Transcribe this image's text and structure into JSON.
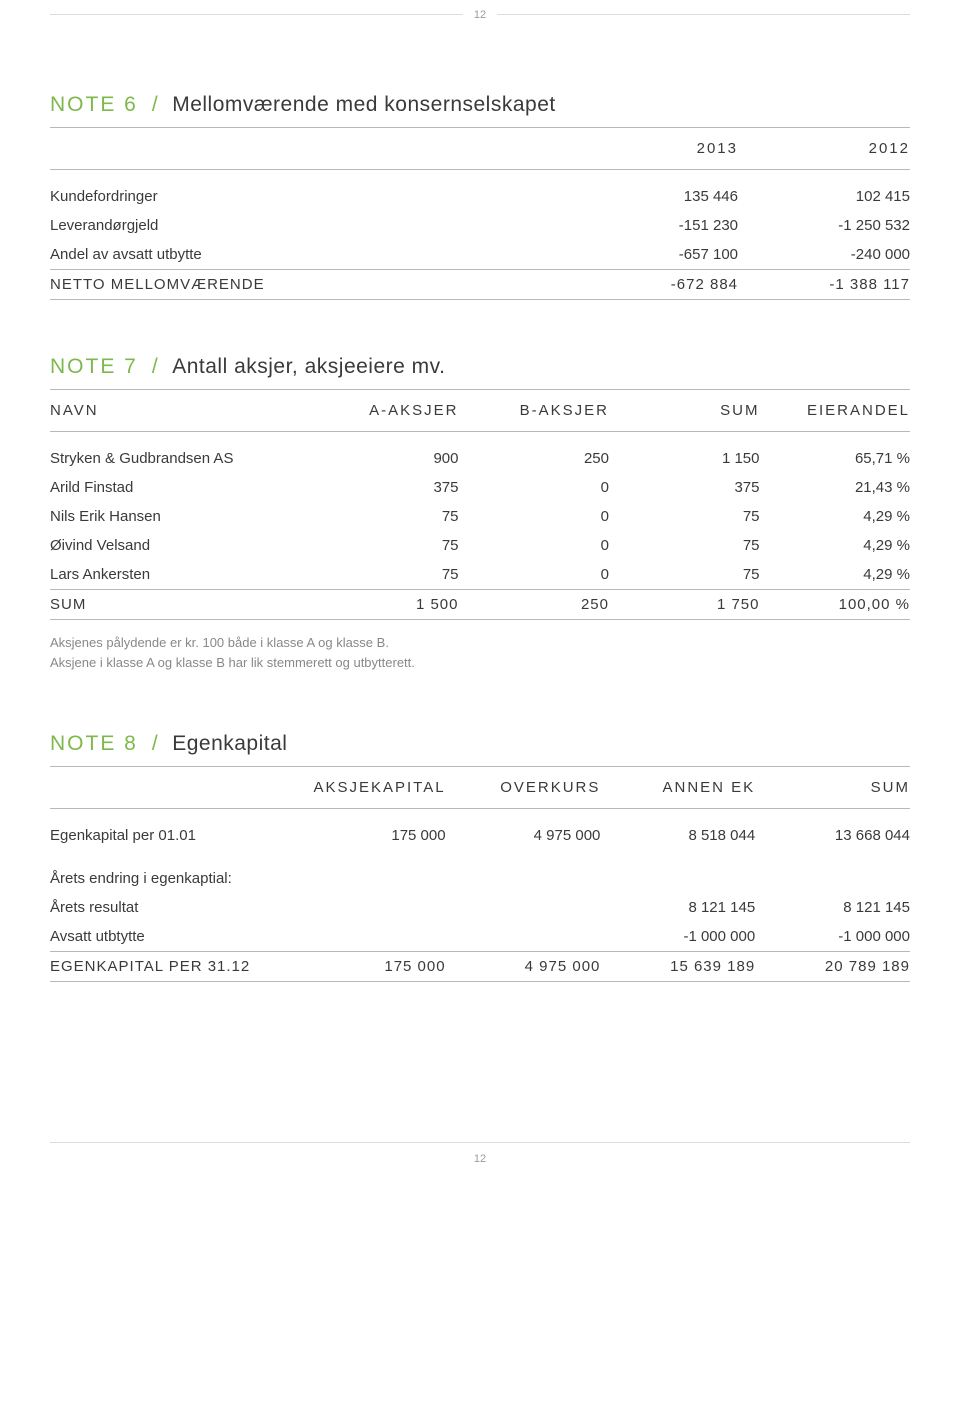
{
  "page_number_top": "12",
  "page_number_bottom": "12",
  "colors": {
    "accent": "#7db84c",
    "rule": "#b8b8b8",
    "light_rule": "#dcdcdc",
    "text": "#3a3a3a",
    "muted": "#888888"
  },
  "note6": {
    "num": "NOTE 6",
    "slash": "/",
    "title": "Mellomværende med konsernselskapet",
    "col_years": [
      "2013",
      "2012"
    ],
    "rows": [
      {
        "label": "Kundefordringer",
        "v1": "135 446",
        "v2": "102 415"
      },
      {
        "label": "Leverandørgjeld",
        "v1": "-151 230",
        "v2": "-1 250 532"
      },
      {
        "label": "Andel av avsatt utbytte",
        "v1": "-657 100",
        "v2": "-240 000"
      }
    ],
    "total": {
      "label": "NETTO MELLOMVÆRENDE",
      "v1": "-672 884",
      "v2": "-1 388 117"
    }
  },
  "note7": {
    "num": "NOTE 7",
    "slash": "/",
    "title": "Antall aksjer, aksjeeiere mv.",
    "headers": [
      "NAVN",
      "A-AKSJER",
      "B-AKSJER",
      "SUM",
      "EIERANDEL"
    ],
    "rows": [
      {
        "c": [
          "Stryken & Gudbrandsen AS",
          "900",
          "250",
          "1 150",
          "65,71 %"
        ]
      },
      {
        "c": [
          "Arild Finstad",
          "375",
          "0",
          "375",
          "21,43 %"
        ]
      },
      {
        "c": [
          "Nils Erik Hansen",
          "75",
          "0",
          "75",
          "4,29 %"
        ]
      },
      {
        "c": [
          "Øivind Velsand",
          "75",
          "0",
          "75",
          "4,29 %"
        ]
      },
      {
        "c": [
          "Lars Ankersten",
          "75",
          "0",
          "75",
          "4,29 %"
        ]
      }
    ],
    "total": {
      "c": [
        "SUM",
        "1 500",
        "250",
        "1 750",
        "100,00 %"
      ]
    },
    "footnote1": "Aksjenes pålydende er kr. 100 både i klasse A og klasse B.",
    "footnote2": "Aksjene i klasse A og klasse B har lik stemmerett og utbytterett."
  },
  "note8": {
    "num": "NOTE 8",
    "slash": "/",
    "title": "Egenkapital",
    "headers": [
      "",
      "AKSJEKAPITAL",
      "OVERKURS",
      "ANNEN EK",
      "SUM"
    ],
    "opening": {
      "c": [
        "Egenkapital per 01.01",
        "175 000",
        "4 975 000",
        "8 518 044",
        "13 668 044"
      ]
    },
    "change_label": "Årets endring i egenkaptial:",
    "rows": [
      {
        "c": [
          "Årets resultat",
          "",
          "",
          "8 121 145",
          "8 121 145"
        ]
      },
      {
        "c": [
          "Avsatt utbtytte",
          "",
          "",
          "-1 000 000",
          "-1 000 000"
        ]
      }
    ],
    "total": {
      "c": [
        "EGENKAPITAL PER 31.12",
        "175 000",
        "4 975 000",
        "15 639 189",
        "20 789 189"
      ]
    }
  }
}
